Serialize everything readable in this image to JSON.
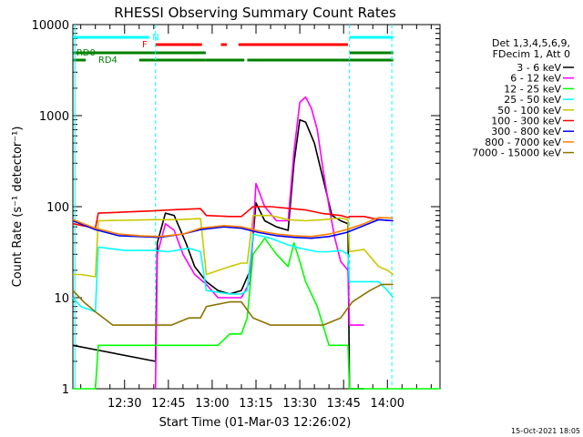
{
  "chart_data": {
    "type": "line",
    "title": "RHESSI Observing Summary Count Rates",
    "xlabel": "Start Time (01-Mar-03 12:26:02)",
    "ylabel": "Count Rate (s⁻¹ detector⁻¹)",
    "ylim": [
      1,
      10000
    ],
    "yscale": "log",
    "xlim_minutes": [
      12.3,
      138.0
    ],
    "x_tick_labels": [
      "12:30",
      "12:45",
      "13:00",
      "13:15",
      "13:30",
      "13:45",
      "14:00"
    ],
    "x_tick_minutes": [
      30,
      45,
      60,
      75,
      90,
      105,
      120
    ],
    "y_tick_labels": [
      "1",
      "10",
      "100",
      "1000",
      "10000"
    ],
    "y_tick_values": [
      1,
      10,
      100,
      1000,
      10000
    ],
    "footer_timestamp": "15-Oct-2021 18:05",
    "legend_header": [
      "Det 1,3,4,5,6,9,",
      "FDecim 1, Att 0"
    ],
    "series": [
      {
        "name": "3 - 6 keV",
        "color": "#000000",
        "points": [
          [
            12.3,
            3
          ],
          [
            40.6,
            2
          ],
          [
            41.2,
            40
          ],
          [
            44,
            85
          ],
          [
            47,
            80
          ],
          [
            51,
            40
          ],
          [
            54,
            22
          ],
          [
            58,
            15
          ],
          [
            62,
            12
          ],
          [
            66,
            11
          ],
          [
            70,
            12
          ],
          [
            73,
            20
          ],
          [
            75,
            110
          ],
          [
            78,
            70
          ],
          [
            82,
            60
          ],
          [
            86,
            55
          ],
          [
            88,
            300
          ],
          [
            90,
            900
          ],
          [
            92,
            850
          ],
          [
            95,
            500
          ],
          [
            98,
            200
          ],
          [
            101,
            80
          ],
          [
            104,
            70
          ],
          [
            106.5,
            65
          ],
          [
            107,
            1
          ],
          [
            112,
            1
          ]
        ]
      },
      {
        "name": "6 - 12 keV",
        "color": "#ff00ff",
        "points": [
          [
            40.6,
            1
          ],
          [
            41.2,
            30
          ],
          [
            44,
            65
          ],
          [
            47,
            55
          ],
          [
            50,
            30
          ],
          [
            54,
            18
          ],
          [
            58,
            14
          ],
          [
            62,
            10
          ],
          [
            66,
            10
          ],
          [
            70,
            10
          ],
          [
            73,
            15
          ],
          [
            75,
            180
          ],
          [
            78,
            100
          ],
          [
            82,
            70
          ],
          [
            86,
            70
          ],
          [
            88,
            400
          ],
          [
            90,
            1400
          ],
          [
            92,
            1600
          ],
          [
            94,
            1200
          ],
          [
            96,
            700
          ],
          [
            98,
            250
          ],
          [
            100,
            100
          ],
          [
            102,
            45
          ],
          [
            104,
            25
          ],
          [
            106.5,
            20
          ],
          [
            107,
            5
          ],
          [
            112,
            5
          ]
        ]
      },
      {
        "name": "12 - 25 keV",
        "color": "#00ff00",
        "points": [
          [
            12.3,
            1
          ],
          [
            20,
            1
          ],
          [
            21,
            3
          ],
          [
            40,
            3
          ],
          [
            44,
            3
          ],
          [
            56,
            3
          ],
          [
            62,
            3
          ],
          [
            66,
            4
          ],
          [
            70,
            4
          ],
          [
            72,
            6
          ],
          [
            74,
            30
          ],
          [
            78,
            45
          ],
          [
            82,
            30
          ],
          [
            86,
            22
          ],
          [
            88,
            40
          ],
          [
            90,
            25
          ],
          [
            92,
            15
          ],
          [
            96,
            8
          ],
          [
            100,
            3
          ],
          [
            106.5,
            3
          ],
          [
            107,
            1
          ],
          [
            138,
            1
          ]
        ]
      },
      {
        "name": "25 - 50 keV",
        "color": "#00ffff",
        "points": [
          [
            12.3,
            10
          ],
          [
            15,
            8
          ],
          [
            20,
            7
          ],
          [
            21,
            36
          ],
          [
            30,
            33
          ],
          [
            40,
            33
          ],
          [
            45,
            32
          ],
          [
            52,
            35
          ],
          [
            56,
            32
          ],
          [
            58,
            12
          ],
          [
            66,
            11
          ],
          [
            70,
            11
          ],
          [
            72,
            12
          ],
          [
            74,
            50
          ],
          [
            80,
            45
          ],
          [
            86,
            38
          ],
          [
            90,
            35
          ],
          [
            96,
            32
          ],
          [
            100,
            32
          ],
          [
            104,
            33
          ],
          [
            106.5,
            30
          ],
          [
            107,
            15
          ],
          [
            112,
            15
          ],
          [
            117,
            15
          ],
          [
            120,
            12
          ],
          [
            122,
            10
          ]
        ]
      },
      {
        "name": "50 - 100 keV",
        "color": "#c8c800",
        "points": [
          [
            12.3,
            18
          ],
          [
            15,
            18
          ],
          [
            20,
            17
          ],
          [
            21,
            70
          ],
          [
            40,
            72
          ],
          [
            48,
            72
          ],
          [
            56,
            74
          ],
          [
            58,
            18
          ],
          [
            66,
            22
          ],
          [
            70,
            24
          ],
          [
            72,
            24
          ],
          [
            74,
            80
          ],
          [
            80,
            80
          ],
          [
            86,
            72
          ],
          [
            92,
            70
          ],
          [
            98,
            72
          ],
          [
            104,
            75
          ],
          [
            106.5,
            72
          ],
          [
            107,
            32
          ],
          [
            112,
            34
          ],
          [
            117,
            22
          ],
          [
            120,
            20
          ],
          [
            122,
            18
          ]
        ]
      },
      {
        "name": "100 - 300 keV",
        "color": "#ff0000",
        "points": [
          [
            12.3,
            65
          ],
          [
            20,
            58
          ],
          [
            21,
            85
          ],
          [
            40,
            90
          ],
          [
            48,
            93
          ],
          [
            56,
            95
          ],
          [
            58,
            80
          ],
          [
            66,
            78
          ],
          [
            70,
            78
          ],
          [
            74,
            100
          ],
          [
            80,
            100
          ],
          [
            86,
            96
          ],
          [
            92,
            92
          ],
          [
            98,
            84
          ],
          [
            104,
            80
          ],
          [
            106.5,
            76
          ],
          [
            107,
            78
          ],
          [
            112,
            78
          ],
          [
            117,
            72
          ],
          [
            122,
            70
          ]
        ]
      },
      {
        "name": "300 - 800 keV",
        "color": "#0000ff",
        "points": [
          [
            12.3,
            70
          ],
          [
            20,
            56
          ],
          [
            28,
            48
          ],
          [
            35,
            47
          ],
          [
            42,
            46
          ],
          [
            50,
            50
          ],
          [
            56,
            56
          ],
          [
            64,
            60
          ],
          [
            70,
            58
          ],
          [
            76,
            52
          ],
          [
            82,
            48
          ],
          [
            88,
            46
          ],
          [
            94,
            45
          ],
          [
            100,
            47
          ],
          [
            106,
            52
          ],
          [
            112,
            62
          ],
          [
            117,
            72
          ],
          [
            122,
            70
          ]
        ]
      },
      {
        "name": "800 - 7000 keV",
        "color": "#ff8000",
        "points": [
          [
            12.3,
            72
          ],
          [
            20,
            58
          ],
          [
            28,
            50
          ],
          [
            35,
            48
          ],
          [
            42,
            47
          ],
          [
            50,
            50
          ],
          [
            56,
            58
          ],
          [
            64,
            62
          ],
          [
            70,
            60
          ],
          [
            76,
            54
          ],
          [
            82,
            50
          ],
          [
            88,
            48
          ],
          [
            94,
            47
          ],
          [
            100,
            50
          ],
          [
            106,
            56
          ],
          [
            112,
            65
          ],
          [
            117,
            76
          ],
          [
            122,
            75
          ]
        ]
      },
      {
        "name": "7000 - 15000 keV",
        "color": "#8b7300",
        "points": [
          [
            12.3,
            12
          ],
          [
            16,
            9
          ],
          [
            20,
            7
          ],
          [
            26,
            5
          ],
          [
            34,
            5
          ],
          [
            40,
            5
          ],
          [
            46,
            5
          ],
          [
            52,
            6
          ],
          [
            56,
            6
          ],
          [
            58,
            8
          ],
          [
            66,
            9
          ],
          [
            70,
            9
          ],
          [
            74,
            6
          ],
          [
            80,
            5
          ],
          [
            86,
            5
          ],
          [
            92,
            5
          ],
          [
            98,
            5
          ],
          [
            104,
            6
          ],
          [
            108,
            9
          ],
          [
            114,
            12
          ],
          [
            118,
            14
          ],
          [
            122,
            14
          ]
        ]
      }
    ],
    "annotations": [
      {
        "label": "F",
        "color": "#ff0000"
      },
      {
        "label": "N",
        "color": "#00ffff"
      },
      {
        "label": "RD0",
        "color": "#008000"
      },
      {
        "label": "RD4",
        "color": "#008000"
      }
    ],
    "flag_bars": {
      "N": [
        [
          12.3,
          38.4
        ],
        [
          107,
          122
        ]
      ],
      "F": [
        [
          40.6,
          56.5
        ],
        [
          63,
          65
        ],
        [
          69,
          106.5
        ]
      ],
      "RD0": [
        [
          12.3,
          57.8
        ],
        [
          107,
          122
        ]
      ],
      "RD4": [
        [
          12.3,
          16.7
        ],
        [
          35,
          57.8
        ],
        [
          57.8,
          71
        ],
        [
          72,
          107
        ],
        [
          107,
          122
        ]
      ]
    },
    "flag_markers_minutes": [
      13,
      40.6,
      107,
      121.5
    ]
  }
}
